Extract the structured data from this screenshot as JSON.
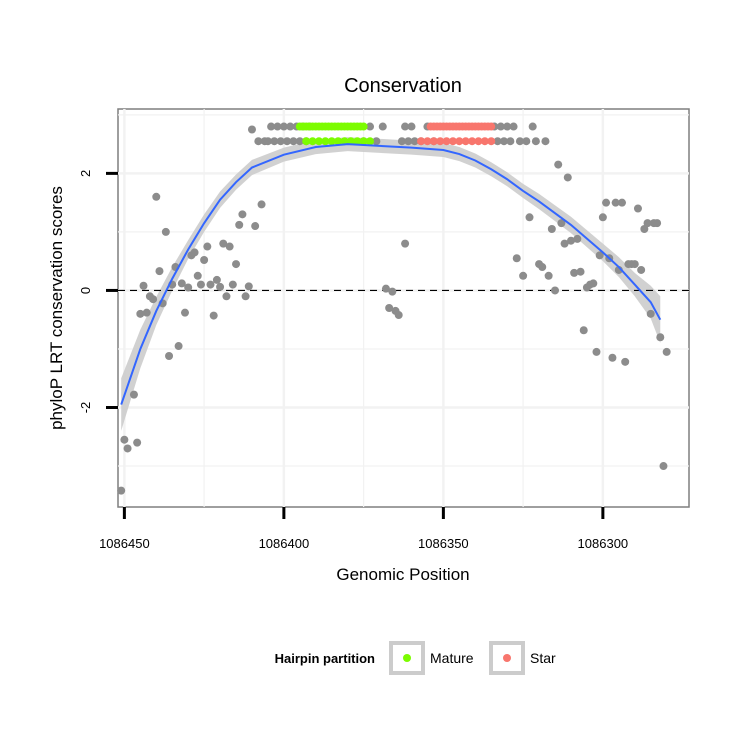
{
  "chart_data": {
    "type": "scatter",
    "title": "Conservation",
    "xlabel": "Genomic Position",
    "ylabel": "phyloP LRT conservation scores",
    "x_reversed": true,
    "xlim": [
      1086452,
      1086273
    ],
    "ylim": [
      -3.7,
      3.1
    ],
    "x_ticks": [
      1086450,
      1086400,
      1086350,
      1086300
    ],
    "x_tick_labels": [
      "1086450",
      "1086400",
      "1086350",
      "1086300"
    ],
    "y_ticks": [
      -2,
      0,
      2
    ],
    "y_tick_labels": [
      "-2",
      "0",
      "2"
    ],
    "reference_line": {
      "y": 0,
      "style": "dashed"
    },
    "legend": {
      "title": "Hairpin partition",
      "position": "bottom",
      "entries": [
        {
          "label": "Mature",
          "color": "#7cfc00"
        },
        {
          "label": "Star",
          "color": "#f8766d"
        }
      ]
    },
    "colors": {
      "other": "#8c8c8c",
      "mature": "#7cfc00",
      "star": "#f8766d",
      "smooth": "#3366ff",
      "ribbon": "#cccccc",
      "panel_border": "#7f7f7f",
      "grid": "#f2f2f2"
    },
    "series": [
      {
        "name": "Other",
        "points": [
          [
            1086451,
            -3.42
          ],
          [
            1086450,
            -2.55
          ],
          [
            1086449,
            -2.7
          ],
          [
            1086447,
            -1.78
          ],
          [
            1086446,
            -2.6
          ],
          [
            1086445,
            -0.4
          ],
          [
            1086444,
            0.08
          ],
          [
            1086443,
            -0.38
          ],
          [
            1086442,
            -0.1
          ],
          [
            1086441,
            -0.15
          ],
          [
            1086440,
            1.6
          ],
          [
            1086439,
            0.33
          ],
          [
            1086438,
            -0.22
          ],
          [
            1086437,
            1.0
          ],
          [
            1086436,
            -1.12
          ],
          [
            1086435,
            0.1
          ],
          [
            1086434,
            0.4
          ],
          [
            1086433,
            -0.95
          ],
          [
            1086432,
            0.12
          ],
          [
            1086431,
            -0.38
          ],
          [
            1086430,
            0.05
          ],
          [
            1086429,
            0.6
          ],
          [
            1086428,
            0.65
          ],
          [
            1086427,
            0.25
          ],
          [
            1086426,
            0.1
          ],
          [
            1086425,
            0.52
          ],
          [
            1086424,
            0.75
          ],
          [
            1086423,
            0.1
          ],
          [
            1086422,
            -0.43
          ],
          [
            1086421,
            0.18
          ],
          [
            1086420,
            0.06
          ],
          [
            1086419,
            0.8
          ],
          [
            1086418,
            -0.1
          ],
          [
            1086417,
            0.75
          ],
          [
            1086416,
            0.1
          ],
          [
            1086415,
            0.45
          ],
          [
            1086414,
            1.12
          ],
          [
            1086413,
            1.3
          ],
          [
            1086412,
            -0.1
          ],
          [
            1086411,
            0.07
          ],
          [
            1086410,
            2.75
          ],
          [
            1086409,
            1.1
          ],
          [
            1086408,
            2.55
          ],
          [
            1086407,
            1.47
          ],
          [
            1086406,
            2.55
          ],
          [
            1086405,
            2.55
          ],
          [
            1086404,
            2.8
          ],
          [
            1086403,
            2.55
          ],
          [
            1086402,
            2.8
          ],
          [
            1086401,
            2.55
          ],
          [
            1086400,
            2.8
          ],
          [
            1086399,
            2.55
          ],
          [
            1086398,
            2.8
          ],
          [
            1086397,
            2.55
          ],
          [
            1086396,
            2.8
          ],
          [
            1086395,
            2.55
          ],
          [
            1086394,
            2.8
          ],
          [
            1086393,
            2.55
          ],
          [
            1086392,
            2.8
          ],
          [
            1086375,
            2.55
          ],
          [
            1086373,
            2.8
          ],
          [
            1086371,
            2.55
          ],
          [
            1086369,
            2.8
          ],
          [
            1086368,
            0.03
          ],
          [
            1086367,
            -0.3
          ],
          [
            1086366,
            -0.02
          ],
          [
            1086365,
            -0.35
          ],
          [
            1086364,
            -0.42
          ],
          [
            1086363,
            2.55
          ],
          [
            1086362,
            2.8
          ],
          [
            1086361,
            2.55
          ],
          [
            1086360,
            2.8
          ],
          [
            1086359,
            2.55
          ],
          [
            1086362,
            0.8
          ],
          [
            1086357,
            2.55
          ],
          [
            1086355,
            2.8
          ],
          [
            1086353,
            2.55
          ],
          [
            1086334,
            2.8
          ],
          [
            1086333,
            2.55
          ],
          [
            1086332,
            2.8
          ],
          [
            1086331,
            2.55
          ],
          [
            1086330,
            2.8
          ],
          [
            1086329,
            2.55
          ],
          [
            1086328,
            2.8
          ],
          [
            1086327,
            0.55
          ],
          [
            1086326,
            2.55
          ],
          [
            1086325,
            0.25
          ],
          [
            1086324,
            2.55
          ],
          [
            1086323,
            1.25
          ],
          [
            1086322,
            2.8
          ],
          [
            1086321,
            2.55
          ],
          [
            1086320,
            0.45
          ],
          [
            1086319,
            0.4
          ],
          [
            1086318,
            2.55
          ],
          [
            1086317,
            0.25
          ],
          [
            1086316,
            1.05
          ],
          [
            1086315,
            0.0
          ],
          [
            1086314,
            2.15
          ],
          [
            1086313,
            1.15
          ],
          [
            1086312,
            0.8
          ],
          [
            1086311,
            1.93
          ],
          [
            1086310,
            0.85
          ],
          [
            1086309,
            0.3
          ],
          [
            1086308,
            0.88
          ],
          [
            1086307,
            0.32
          ],
          [
            1086306,
            -0.68
          ],
          [
            1086305,
            0.05
          ],
          [
            1086304,
            0.1
          ],
          [
            1086303,
            0.12
          ],
          [
            1086302,
            -1.05
          ],
          [
            1086301,
            0.6
          ],
          [
            1086300,
            1.25
          ],
          [
            1086299,
            1.5
          ],
          [
            1086298,
            0.55
          ],
          [
            1086297,
            -1.15
          ],
          [
            1086296,
            1.5
          ],
          [
            1086295,
            0.35
          ],
          [
            1086294,
            1.5
          ],
          [
            1086293,
            -1.22
          ],
          [
            1086292,
            0.45
          ],
          [
            1086291,
            0.45
          ],
          [
            1086290,
            0.45
          ],
          [
            1086289,
            1.4
          ],
          [
            1086288,
            0.35
          ],
          [
            1086287,
            1.05
          ],
          [
            1086286,
            1.15
          ],
          [
            1086285,
            -0.4
          ],
          [
            1086284,
            1.15
          ],
          [
            1086283,
            1.15
          ],
          [
            1086282,
            -0.8
          ],
          [
            1086281,
            -3.0
          ],
          [
            1086280,
            -1.05
          ]
        ]
      },
      {
        "name": "Mature",
        "points": [
          [
            1086395,
            2.8
          ],
          [
            1086394,
            2.8
          ],
          [
            1086393,
            2.8
          ],
          [
            1086392,
            2.8
          ],
          [
            1086391,
            2.8
          ],
          [
            1086390,
            2.8
          ],
          [
            1086389,
            2.8
          ],
          [
            1086388,
            2.8
          ],
          [
            1086387,
            2.8
          ],
          [
            1086386,
            2.8
          ],
          [
            1086385,
            2.8
          ],
          [
            1086384,
            2.8
          ],
          [
            1086383,
            2.8
          ],
          [
            1086382,
            2.8
          ],
          [
            1086381,
            2.8
          ],
          [
            1086380,
            2.8
          ],
          [
            1086379,
            2.8
          ],
          [
            1086378,
            2.8
          ],
          [
            1086377,
            2.8
          ],
          [
            1086376,
            2.8
          ],
          [
            1086375,
            2.8
          ],
          [
            1086393,
            2.55
          ],
          [
            1086391,
            2.55
          ],
          [
            1086389,
            2.55
          ],
          [
            1086387,
            2.55
          ],
          [
            1086385,
            2.55
          ],
          [
            1086383,
            2.55
          ],
          [
            1086381,
            2.55
          ],
          [
            1086379,
            2.55
          ],
          [
            1086377,
            2.55
          ],
          [
            1086375,
            2.55
          ],
          [
            1086373,
            2.55
          ]
        ]
      },
      {
        "name": "Star",
        "points": [
          [
            1086354,
            2.8
          ],
          [
            1086353,
            2.8
          ],
          [
            1086352,
            2.8
          ],
          [
            1086351,
            2.8
          ],
          [
            1086350,
            2.8
          ],
          [
            1086349,
            2.8
          ],
          [
            1086348,
            2.8
          ],
          [
            1086347,
            2.8
          ],
          [
            1086346,
            2.8
          ],
          [
            1086345,
            2.8
          ],
          [
            1086344,
            2.8
          ],
          [
            1086343,
            2.8
          ],
          [
            1086342,
            2.8
          ],
          [
            1086341,
            2.8
          ],
          [
            1086340,
            2.8
          ],
          [
            1086339,
            2.8
          ],
          [
            1086338,
            2.8
          ],
          [
            1086337,
            2.8
          ],
          [
            1086336,
            2.8
          ],
          [
            1086335,
            2.8
          ],
          [
            1086357,
            2.55
          ],
          [
            1086355,
            2.55
          ],
          [
            1086353,
            2.55
          ],
          [
            1086351,
            2.55
          ],
          [
            1086349,
            2.55
          ],
          [
            1086347,
            2.55
          ],
          [
            1086345,
            2.55
          ],
          [
            1086343,
            2.55
          ],
          [
            1086341,
            2.55
          ],
          [
            1086339,
            2.55
          ],
          [
            1086337,
            2.55
          ],
          [
            1086335,
            2.55
          ]
        ]
      }
    ],
    "smooth": {
      "method": "loess",
      "points": [
        [
          1086451,
          -1.95
        ],
        [
          1086445,
          -1.0
        ],
        [
          1086440,
          -0.35
        ],
        [
          1086435,
          0.2
        ],
        [
          1086430,
          0.7
        ],
        [
          1086425,
          1.15
        ],
        [
          1086420,
          1.55
        ],
        [
          1086415,
          1.85
        ],
        [
          1086410,
          2.1
        ],
        [
          1086400,
          2.32
        ],
        [
          1086390,
          2.45
        ],
        [
          1086380,
          2.5
        ],
        [
          1086370,
          2.47
        ],
        [
          1086360,
          2.44
        ],
        [
          1086350,
          2.4
        ],
        [
          1086345,
          2.33
        ],
        [
          1086340,
          2.22
        ],
        [
          1086335,
          2.07
        ],
        [
          1086330,
          1.9
        ],
        [
          1086325,
          1.7
        ],
        [
          1086320,
          1.52
        ],
        [
          1086310,
          1.12
        ],
        [
          1086300,
          0.65
        ],
        [
          1086295,
          0.4
        ],
        [
          1086290,
          0.1
        ],
        [
          1086285,
          -0.2
        ],
        [
          1086282,
          -0.5
        ]
      ],
      "band_halfwidth": [
        0.45,
        0.33,
        0.24,
        0.2,
        0.16,
        0.15,
        0.14,
        0.13,
        0.13,
        0.12,
        0.12,
        0.12,
        0.12,
        0.12,
        0.12,
        0.12,
        0.12,
        0.12,
        0.12,
        0.12,
        0.13,
        0.14,
        0.15,
        0.17,
        0.2,
        0.28,
        0.4
      ]
    }
  }
}
